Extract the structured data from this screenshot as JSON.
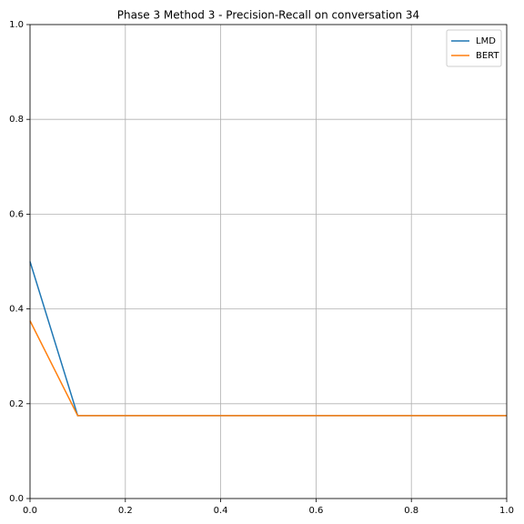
{
  "chart_data": {
    "type": "line",
    "title": "Phase 3 Method 3 - Precision-Recall on conversation 34",
    "x": [
      0,
      0.1,
      1
    ],
    "series": [
      {
        "name": "LMD",
        "color": "#1f77b4",
        "values": [
          0.5,
          0.175,
          0.175
        ]
      },
      {
        "name": "BERT",
        "color": "#ff7f0e",
        "values": [
          0.375,
          0.175,
          0.175
        ]
      }
    ],
    "xlim": [
      0,
      1
    ],
    "ylim": [
      0,
      1
    ],
    "xticks": [
      {
        "value": 0,
        "label": "0.0"
      },
      0.2,
      0.4,
      0.6,
      0.8,
      {
        "value": 1,
        "label": "1.0"
      }
    ],
    "yticks": [
      {
        "value": 0,
        "label": "0.0"
      },
      0.2,
      0.4,
      0.6,
      0.8,
      {
        "value": 1,
        "label": "1.0"
      }
    ],
    "grid": true,
    "legend": "upper right"
  }
}
